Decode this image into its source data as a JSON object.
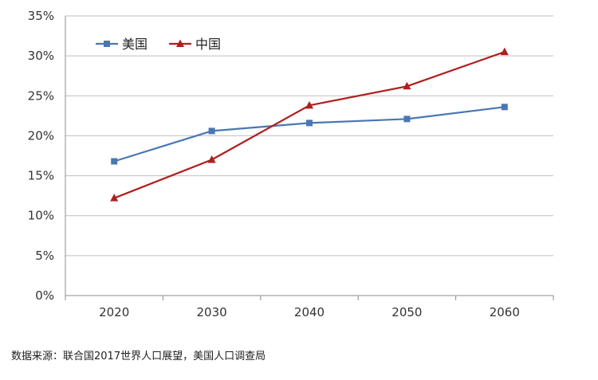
{
  "chart_data": {
    "type": "line",
    "x": [
      2020,
      2030,
      2040,
      2050,
      2060
    ],
    "categories": [
      "2020",
      "2030",
      "2040",
      "2050",
      "2060"
    ],
    "y_ticks": [
      "0%",
      "5%",
      "10%",
      "15%",
      "20%",
      "25%",
      "30%",
      "35%"
    ],
    "ylim": [
      0,
      35
    ],
    "y_unit": "%",
    "grid": true,
    "legend_position": "top-left",
    "series": [
      {
        "name": "美国",
        "color": "#4a77b4",
        "marker": "square",
        "values": [
          16.8,
          20.6,
          21.6,
          22.1,
          23.6
        ]
      },
      {
        "name": "中国",
        "color": "#b01e1e",
        "marker": "triangle",
        "values": [
          12.2,
          17.0,
          23.8,
          26.2,
          30.5
        ]
      }
    ]
  },
  "source_note": "数据来源：联合国2017世界人口展望，美国人口调查局"
}
